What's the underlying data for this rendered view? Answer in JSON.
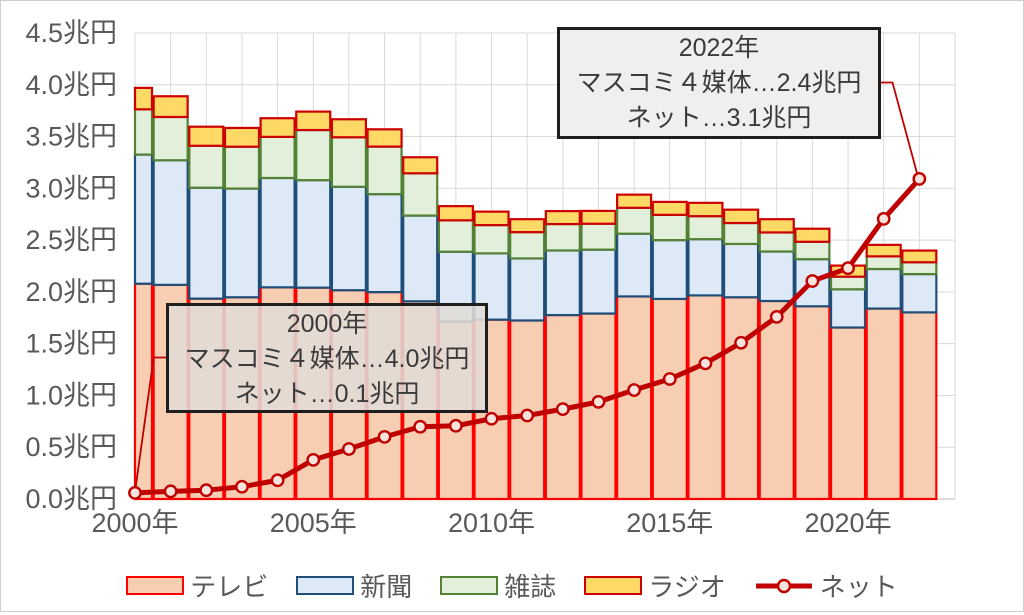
{
  "chart_data": {
    "type": "combo-stacked-bar-line",
    "unit": "兆円",
    "categories": [
      2000,
      2001,
      2002,
      2003,
      2004,
      2005,
      2006,
      2007,
      2008,
      2009,
      2010,
      2011,
      2012,
      2013,
      2014,
      2015,
      2016,
      2017,
      2018,
      2019,
      2020,
      2021,
      2022
    ],
    "series": [
      {
        "id": "tv",
        "name": "テレビ",
        "type": "bar",
        "fill": "#F8CEB2",
        "stroke": "#FF0000",
        "values": [
          2.079,
          2.068,
          1.935,
          1.948,
          2.044,
          2.041,
          2.016,
          1.998,
          1.909,
          1.714,
          1.732,
          1.724,
          1.776,
          1.791,
          1.956,
          1.932,
          1.966,
          1.948,
          1.912,
          1.861,
          1.656,
          1.839,
          1.802
        ]
      },
      {
        "id": "newspaper",
        "name": "新聞",
        "type": "bar",
        "fill": "#DDE9F6",
        "stroke": "#1F4E79",
        "values": [
          1.247,
          1.203,
          1.071,
          1.05,
          1.056,
          1.038,
          0.999,
          0.946,
          0.828,
          0.674,
          0.64,
          0.599,
          0.624,
          0.617,
          0.606,
          0.568,
          0.543,
          0.515,
          0.478,
          0.455,
          0.369,
          0.382,
          0.37
        ]
      },
      {
        "id": "magazine",
        "name": "雑誌",
        "type": "bar",
        "fill": "#E2EFDA",
        "stroke": "#538135",
        "values": [
          0.437,
          0.418,
          0.405,
          0.404,
          0.397,
          0.484,
          0.478,
          0.459,
          0.408,
          0.303,
          0.273,
          0.254,
          0.255,
          0.25,
          0.25,
          0.244,
          0.222,
          0.202,
          0.184,
          0.168,
          0.122,
          0.122,
          0.114
        ]
      },
      {
        "id": "radio",
        "name": "ラジオ",
        "type": "bar",
        "fill": "#FFD965",
        "stroke": "#CC0000",
        "values": [
          0.207,
          0.2,
          0.184,
          0.181,
          0.18,
          0.178,
          0.174,
          0.167,
          0.155,
          0.137,
          0.13,
          0.125,
          0.125,
          0.124,
          0.127,
          0.125,
          0.129,
          0.129,
          0.128,
          0.126,
          0.107,
          0.111,
          0.113
        ]
      },
      {
        "id": "net",
        "name": "ネット",
        "type": "line",
        "line_color": "#C00000",
        "marker_fill": "#F8E3DC",
        "marker_stroke": "#C00000",
        "values": [
          0.059,
          0.074,
          0.085,
          0.118,
          0.181,
          0.378,
          0.483,
          0.6,
          0.698,
          0.707,
          0.775,
          0.806,
          0.868,
          0.938,
          1.052,
          1.159,
          1.31,
          1.509,
          1.759,
          2.105,
          2.229,
          2.705,
          3.091
        ]
      }
    ],
    "x_axis": {
      "range": [
        2000,
        2023
      ],
      "ticks": [
        {
          "label": "2000年",
          "year": 2000
        },
        {
          "label": "2005年",
          "year": 2005
        },
        {
          "label": "2010年",
          "year": 2010
        },
        {
          "label": "2015年",
          "year": 2015
        },
        {
          "label": "2020年",
          "year": 2020
        }
      ]
    },
    "y_axis": {
      "min": 0,
      "max": 4.5,
      "step": 0.5,
      "ticks": [
        "0.0兆円",
        "0.5兆円",
        "1.0兆円",
        "1.5兆円",
        "2.0兆円",
        "2.5兆円",
        "3.0兆円",
        "3.5兆円",
        "4.0兆円",
        "4.5兆円"
      ]
    },
    "grid": true,
    "grid_color": "#D9D9D9",
    "axis_line_color": "#C6C6C6",
    "axis_text_color": "#595959",
    "background": "#FFFFFF",
    "legend_position": "bottom"
  },
  "annotations": [
    {
      "id": "callout-2000",
      "lines": [
        "2000年",
        "マスコミ４媒体…4.0兆円",
        "ネット…0.1兆円"
      ],
      "box_fill": "rgba(224,220,214,0.88)",
      "border_color": "#1E1E1E",
      "connector_color": "#C00000",
      "points_to_year": 2000
    },
    {
      "id": "callout-2022",
      "lines": [
        "2022年",
        "マスコミ４媒体…2.4兆円",
        "ネット…3.1兆円"
      ],
      "box_fill": "#F0EFED",
      "border_color": "#1E1E1E",
      "connector_color": "#C00000",
      "points_to_year": 2022
    }
  ]
}
